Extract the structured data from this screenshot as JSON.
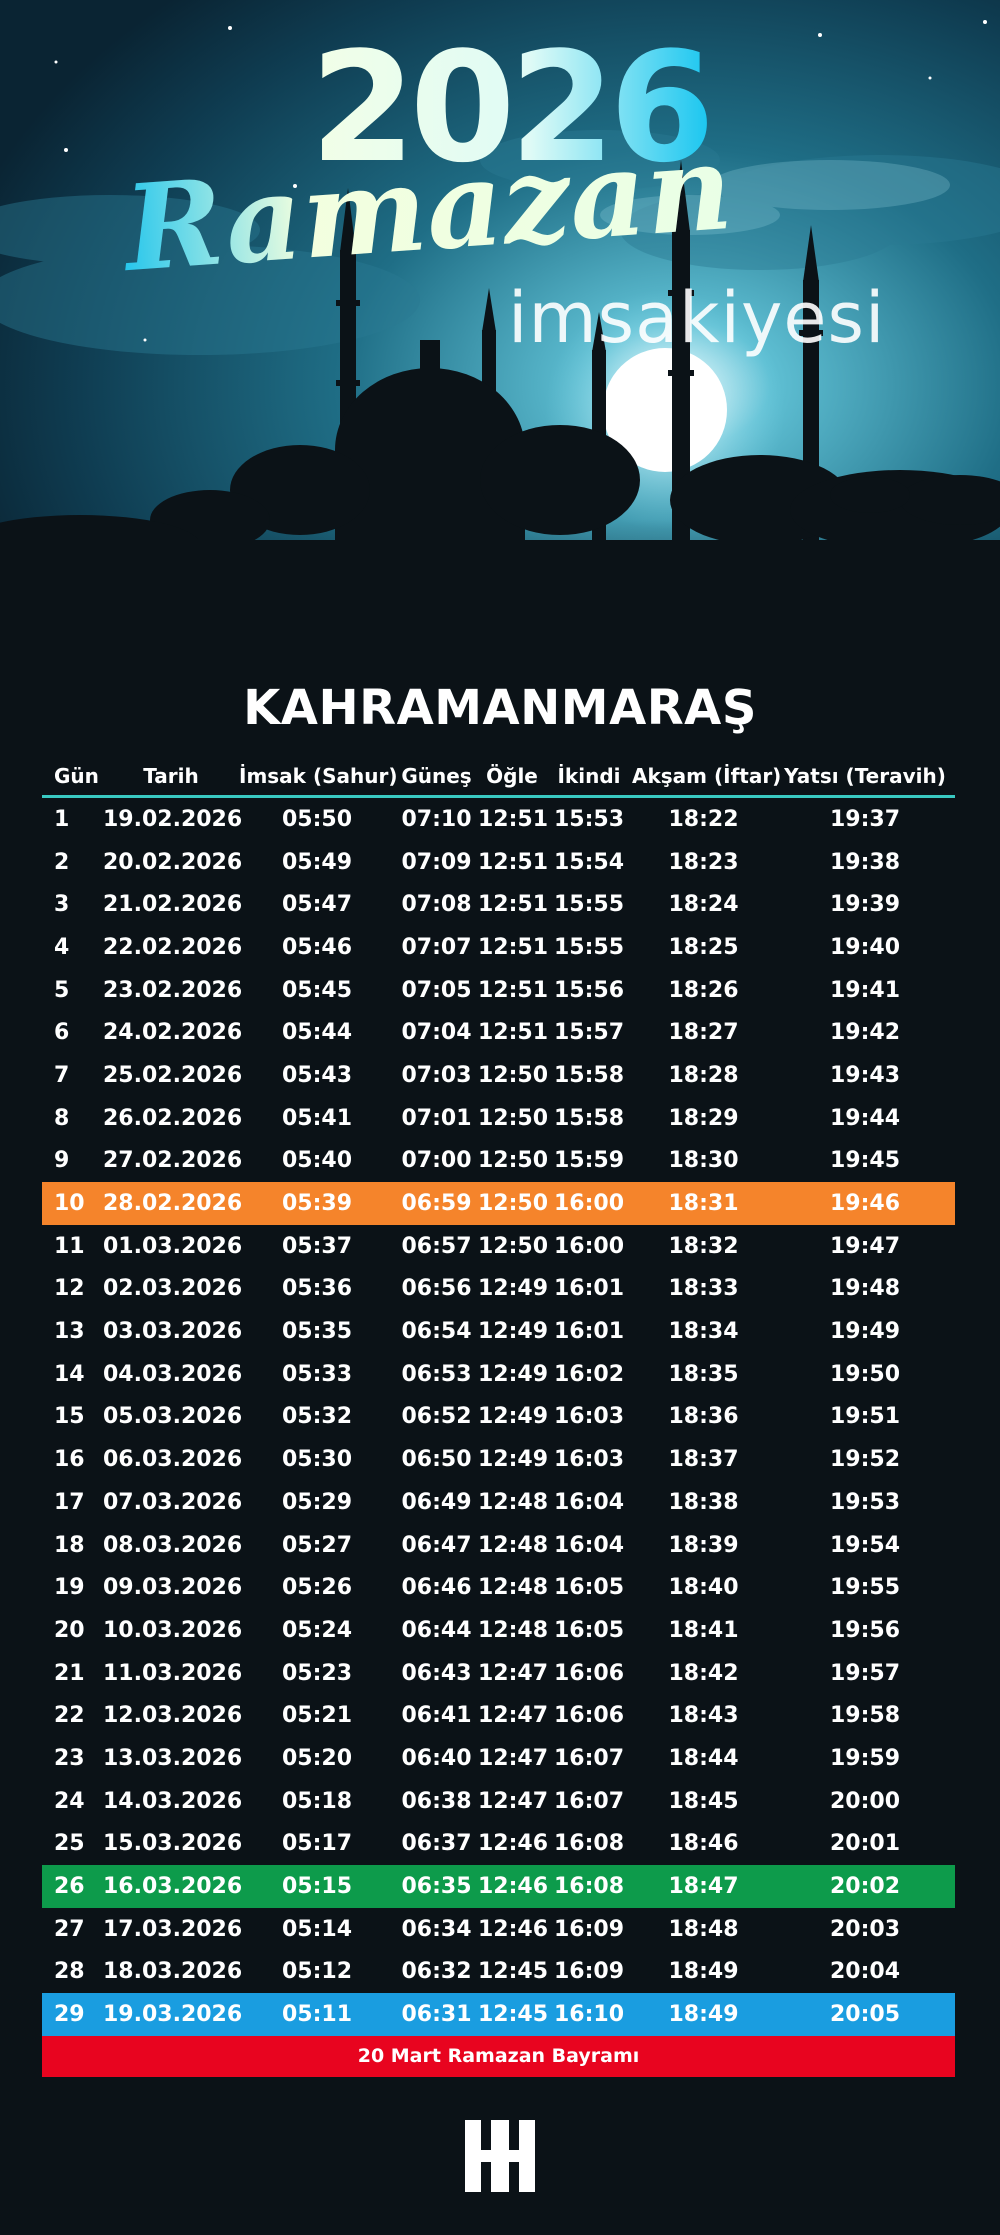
{
  "header": {
    "year": "2026",
    "title_script": "Ramazan",
    "title_sub": "imsakiyesi"
  },
  "city": "KAHRAMANMARAŞ",
  "table": {
    "columns": [
      "Gün",
      "Tarih",
      "İmsak (Sahur)",
      "Güneş",
      "Öğle",
      "İkindi",
      "Akşam (İftar)",
      "Yatsı (Teravih)"
    ],
    "rows": [
      {
        "gun": "1",
        "tarih": "19.02.2026",
        "imsak": "05:50",
        "gunes": "07:10",
        "ogle": "12:51",
        "ikindi": "15:53",
        "aksam": "18:22",
        "yatsi": "19:37"
      },
      {
        "gun": "2",
        "tarih": "20.02.2026",
        "imsak": "05:49",
        "gunes": "07:09",
        "ogle": "12:51",
        "ikindi": "15:54",
        "aksam": "18:23",
        "yatsi": "19:38"
      },
      {
        "gun": "3",
        "tarih": "21.02.2026",
        "imsak": "05:47",
        "gunes": "07:08",
        "ogle": "12:51",
        "ikindi": "15:55",
        "aksam": "18:24",
        "yatsi": "19:39"
      },
      {
        "gun": "4",
        "tarih": "22.02.2026",
        "imsak": "05:46",
        "gunes": "07:07",
        "ogle": "12:51",
        "ikindi": "15:55",
        "aksam": "18:25",
        "yatsi": "19:40"
      },
      {
        "gun": "5",
        "tarih": "23.02.2026",
        "imsak": "05:45",
        "gunes": "07:05",
        "ogle": "12:51",
        "ikindi": "15:56",
        "aksam": "18:26",
        "yatsi": "19:41"
      },
      {
        "gun": "6",
        "tarih": "24.02.2026",
        "imsak": "05:44",
        "gunes": "07:04",
        "ogle": "12:51",
        "ikindi": "15:57",
        "aksam": "18:27",
        "yatsi": "19:42"
      },
      {
        "gun": "7",
        "tarih": "25.02.2026",
        "imsak": "05:43",
        "gunes": "07:03",
        "ogle": "12:50",
        "ikindi": "15:58",
        "aksam": "18:28",
        "yatsi": "19:43"
      },
      {
        "gun": "8",
        "tarih": "26.02.2026",
        "imsak": "05:41",
        "gunes": "07:01",
        "ogle": "12:50",
        "ikindi": "15:58",
        "aksam": "18:29",
        "yatsi": "19:44"
      },
      {
        "gun": "9",
        "tarih": "27.02.2026",
        "imsak": "05:40",
        "gunes": "07:00",
        "ogle": "12:50",
        "ikindi": "15:59",
        "aksam": "18:30",
        "yatsi": "19:45"
      },
      {
        "gun": "10",
        "tarih": "28.02.2026",
        "imsak": "05:39",
        "gunes": "06:59",
        "ogle": "12:50",
        "ikindi": "16:00",
        "aksam": "18:31",
        "yatsi": "19:46",
        "highlight": "orange"
      },
      {
        "gun": "11",
        "tarih": "01.03.2026",
        "imsak": "05:37",
        "gunes": "06:57",
        "ogle": "12:50",
        "ikindi": "16:00",
        "aksam": "18:32",
        "yatsi": "19:47"
      },
      {
        "gun": "12",
        "tarih": "02.03.2026",
        "imsak": "05:36",
        "gunes": "06:56",
        "ogle": "12:49",
        "ikindi": "16:01",
        "aksam": "18:33",
        "yatsi": "19:48"
      },
      {
        "gun": "13",
        "tarih": "03.03.2026",
        "imsak": "05:35",
        "gunes": "06:54",
        "ogle": "12:49",
        "ikindi": "16:01",
        "aksam": "18:34",
        "yatsi": "19:49"
      },
      {
        "gun": "14",
        "tarih": "04.03.2026",
        "imsak": "05:33",
        "gunes": "06:53",
        "ogle": "12:49",
        "ikindi": "16:02",
        "aksam": "18:35",
        "yatsi": "19:50"
      },
      {
        "gun": "15",
        "tarih": "05.03.2026",
        "imsak": "05:32",
        "gunes": "06:52",
        "ogle": "12:49",
        "ikindi": "16:03",
        "aksam": "18:36",
        "yatsi": "19:51"
      },
      {
        "gun": "16",
        "tarih": "06.03.2026",
        "imsak": "05:30",
        "gunes": "06:50",
        "ogle": "12:49",
        "ikindi": "16:03",
        "aksam": "18:37",
        "yatsi": "19:52"
      },
      {
        "gun": "17",
        "tarih": "07.03.2026",
        "imsak": "05:29",
        "gunes": "06:49",
        "ogle": "12:48",
        "ikindi": "16:04",
        "aksam": "18:38",
        "yatsi": "19:53"
      },
      {
        "gun": "18",
        "tarih": "08.03.2026",
        "imsak": "05:27",
        "gunes": "06:47",
        "ogle": "12:48",
        "ikindi": "16:04",
        "aksam": "18:39",
        "yatsi": "19:54"
      },
      {
        "gun": "19",
        "tarih": "09.03.2026",
        "imsak": "05:26",
        "gunes": "06:46",
        "ogle": "12:48",
        "ikindi": "16:05",
        "aksam": "18:40",
        "yatsi": "19:55"
      },
      {
        "gun": "20",
        "tarih": "10.03.2026",
        "imsak": "05:24",
        "gunes": "06:44",
        "ogle": "12:48",
        "ikindi": "16:05",
        "aksam": "18:41",
        "yatsi": "19:56"
      },
      {
        "gun": "21",
        "tarih": "11.03.2026",
        "imsak": "05:23",
        "gunes": "06:43",
        "ogle": "12:47",
        "ikindi": "16:06",
        "aksam": "18:42",
        "yatsi": "19:57"
      },
      {
        "gun": "22",
        "tarih": "12.03.2026",
        "imsak": "05:21",
        "gunes": "06:41",
        "ogle": "12:47",
        "ikindi": "16:06",
        "aksam": "18:43",
        "yatsi": "19:58"
      },
      {
        "gun": "23",
        "tarih": "13.03.2026",
        "imsak": "05:20",
        "gunes": "06:40",
        "ogle": "12:47",
        "ikindi": "16:07",
        "aksam": "18:44",
        "yatsi": "19:59"
      },
      {
        "gun": "24",
        "tarih": "14.03.2026",
        "imsak": "05:18",
        "gunes": "06:38",
        "ogle": "12:47",
        "ikindi": "16:07",
        "aksam": "18:45",
        "yatsi": "20:00"
      },
      {
        "gun": "25",
        "tarih": "15.03.2026",
        "imsak": "05:17",
        "gunes": "06:37",
        "ogle": "12:46",
        "ikindi": "16:08",
        "aksam": "18:46",
        "yatsi": "20:01"
      },
      {
        "gun": "26",
        "tarih": "16.03.2026",
        "imsak": "05:15",
        "gunes": "06:35",
        "ogle": "12:46",
        "ikindi": "16:08",
        "aksam": "18:47",
        "yatsi": "20:02",
        "highlight": "green"
      },
      {
        "gun": "27",
        "tarih": "17.03.2026",
        "imsak": "05:14",
        "gunes": "06:34",
        "ogle": "12:46",
        "ikindi": "16:09",
        "aksam": "18:48",
        "yatsi": "20:03"
      },
      {
        "gun": "28",
        "tarih": "18.03.2026",
        "imsak": "05:12",
        "gunes": "06:32",
        "ogle": "12:45",
        "ikindi": "16:09",
        "aksam": "18:49",
        "yatsi": "20:04"
      },
      {
        "gun": "29",
        "tarih": "19.03.2026",
        "imsak": "05:11",
        "gunes": "06:31",
        "ogle": "12:45",
        "ikindi": "16:10",
        "aksam": "18:49",
        "yatsi": "20:05",
        "highlight": "blue"
      }
    ]
  },
  "footer_note": "20 Mart Ramazan Bayramı",
  "logo_letter": "H",
  "colors": {
    "background": "#0b1217",
    "header_rule": "#39c9c2",
    "orange": "#f5842b",
    "green": "#0d9b4b",
    "blue": "#1a9de0",
    "red": "#e8041f"
  },
  "icons": [
    "mosque-silhouette",
    "moon-icon",
    "logo-h-icon"
  ]
}
